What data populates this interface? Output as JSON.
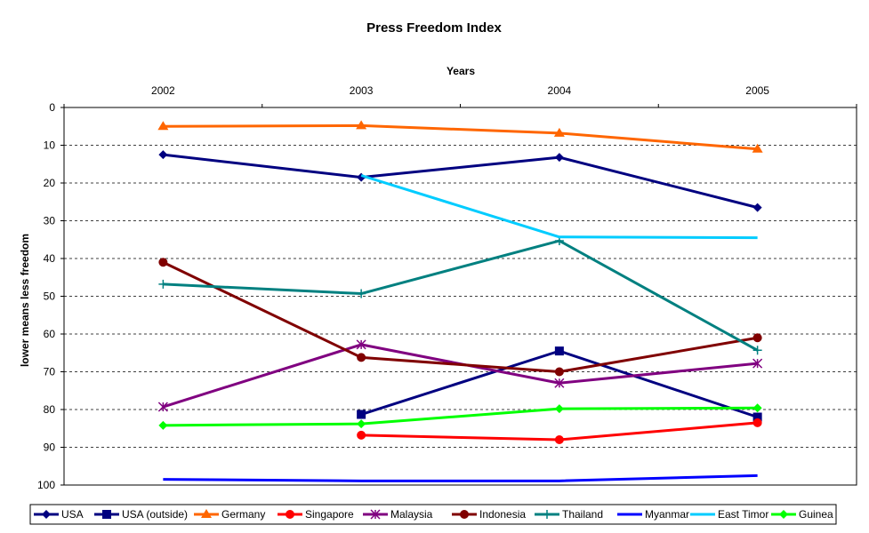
{
  "chart_data": {
    "type": "line",
    "title": "Press Freedom Index",
    "xlabel": "Years",
    "ylabel": "lower means less freedom",
    "x": [
      "2002",
      "2003",
      "2004",
      "2005"
    ],
    "ylim": [
      0,
      100
    ],
    "y_ticks": [
      "0",
      "10",
      "20",
      "30",
      "40",
      "50",
      "60",
      "70",
      "80",
      "90",
      "100"
    ],
    "y_inverted": true,
    "x_axis_position": "top",
    "grid": "horizontal dashed",
    "legend_position": "bottom",
    "series": [
      {
        "name": "USA",
        "color": "#000080",
        "marker": "diamond",
        "values": [
          12.5,
          18.5,
          13.2,
          26.5
        ]
      },
      {
        "name": "USA (outside)",
        "color": "#000080",
        "marker": "square",
        "values": [
          null,
          81.3,
          64.5,
          82.0
        ]
      },
      {
        "name": "Germany",
        "color": "#ff6600",
        "marker": "triangle",
        "values": [
          5.0,
          4.8,
          6.8,
          11.0
        ]
      },
      {
        "name": "Singapore",
        "color": "#ff0000",
        "marker": "circle",
        "values": [
          null,
          86.8,
          88.0,
          83.5
        ]
      },
      {
        "name": "Malaysia",
        "color": "#800080",
        "marker": "star",
        "values": [
          79.3,
          62.8,
          73.0,
          67.8
        ]
      },
      {
        "name": "Indonesia",
        "color": "#800000",
        "marker": "circle",
        "values": [
          41.0,
          66.2,
          70.0,
          61.0
        ]
      },
      {
        "name": "Thailand",
        "color": "#008080",
        "marker": "plus",
        "values": [
          46.8,
          49.3,
          35.3,
          64.3
        ]
      },
      {
        "name": "Myanmar",
        "color": "#0000ff",
        "marker": "none",
        "values": [
          98.5,
          98.9,
          98.9,
          97.5
        ]
      },
      {
        "name": "East Timor",
        "color": "#00ccff",
        "marker": "none",
        "values": [
          null,
          18.0,
          34.3,
          34.5
        ]
      },
      {
        "name": "Guinea",
        "color": "#00ff00",
        "marker": "diamond",
        "values": [
          84.2,
          83.8,
          79.8,
          79.6
        ]
      }
    ]
  }
}
